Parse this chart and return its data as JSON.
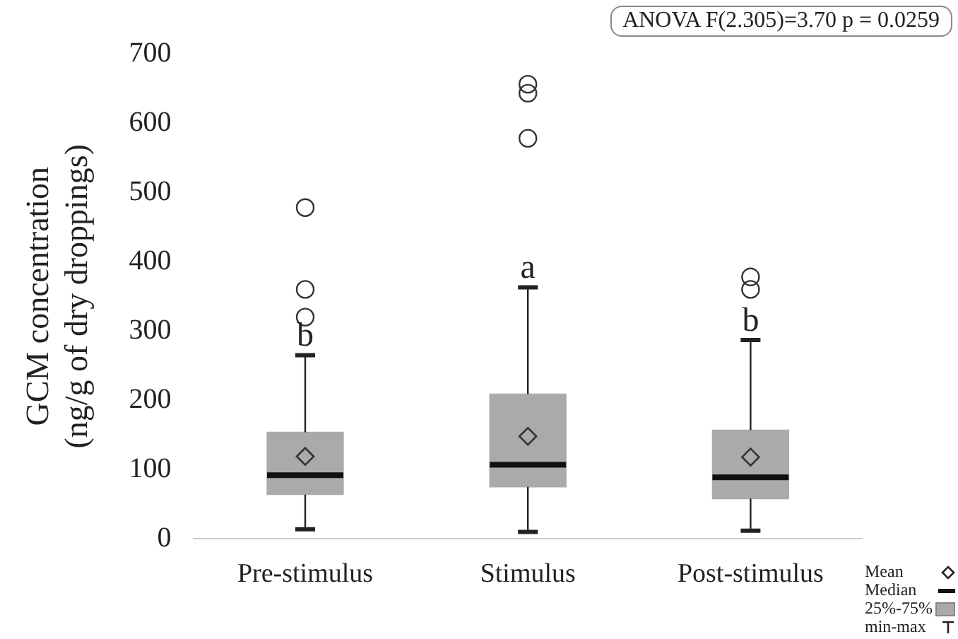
{
  "chart_data": {
    "type": "box",
    "ylabel": "GCM concentration\n(ng/g of dry droppings)",
    "categories": [
      "Pre-stimulus",
      "Stimulus",
      "Post-stimulus"
    ],
    "color": "#aaaaaa",
    "boxes": [
      {
        "low": 14,
        "q1": 64,
        "median": 92,
        "q3": 154,
        "high": 265,
        "mean": 119,
        "outliers": [
          320,
          360,
          478
        ]
      },
      {
        "low": 10,
        "q1": 75,
        "median": 107,
        "q3": 209,
        "high": 363,
        "mean": 148,
        "outliers": [
          578,
          643,
          656
        ]
      },
      {
        "low": 12,
        "q1": 58,
        "median": 89,
        "q3": 157,
        "high": 287,
        "mean": 118,
        "outliers": [
          360,
          378
        ]
      }
    ],
    "ylim": [
      0,
      700
    ],
    "yticks": [
      0,
      100,
      200,
      300,
      400,
      500,
      600,
      700
    ],
    "grid": false,
    "annotations": [
      "ANOVA F(2.305)=3.70 p = 0.0259",
      "Mean",
      "Median",
      "25%-75%",
      "min-max",
      {
        "text": "b",
        "x": "Pre-stimulus",
        "y": 265
      },
      {
        "text": "a",
        "x": "Stimulus",
        "y": 363
      },
      {
        "text": "b",
        "x": "Post-stimulus",
        "y": 287
      }
    ]
  }
}
